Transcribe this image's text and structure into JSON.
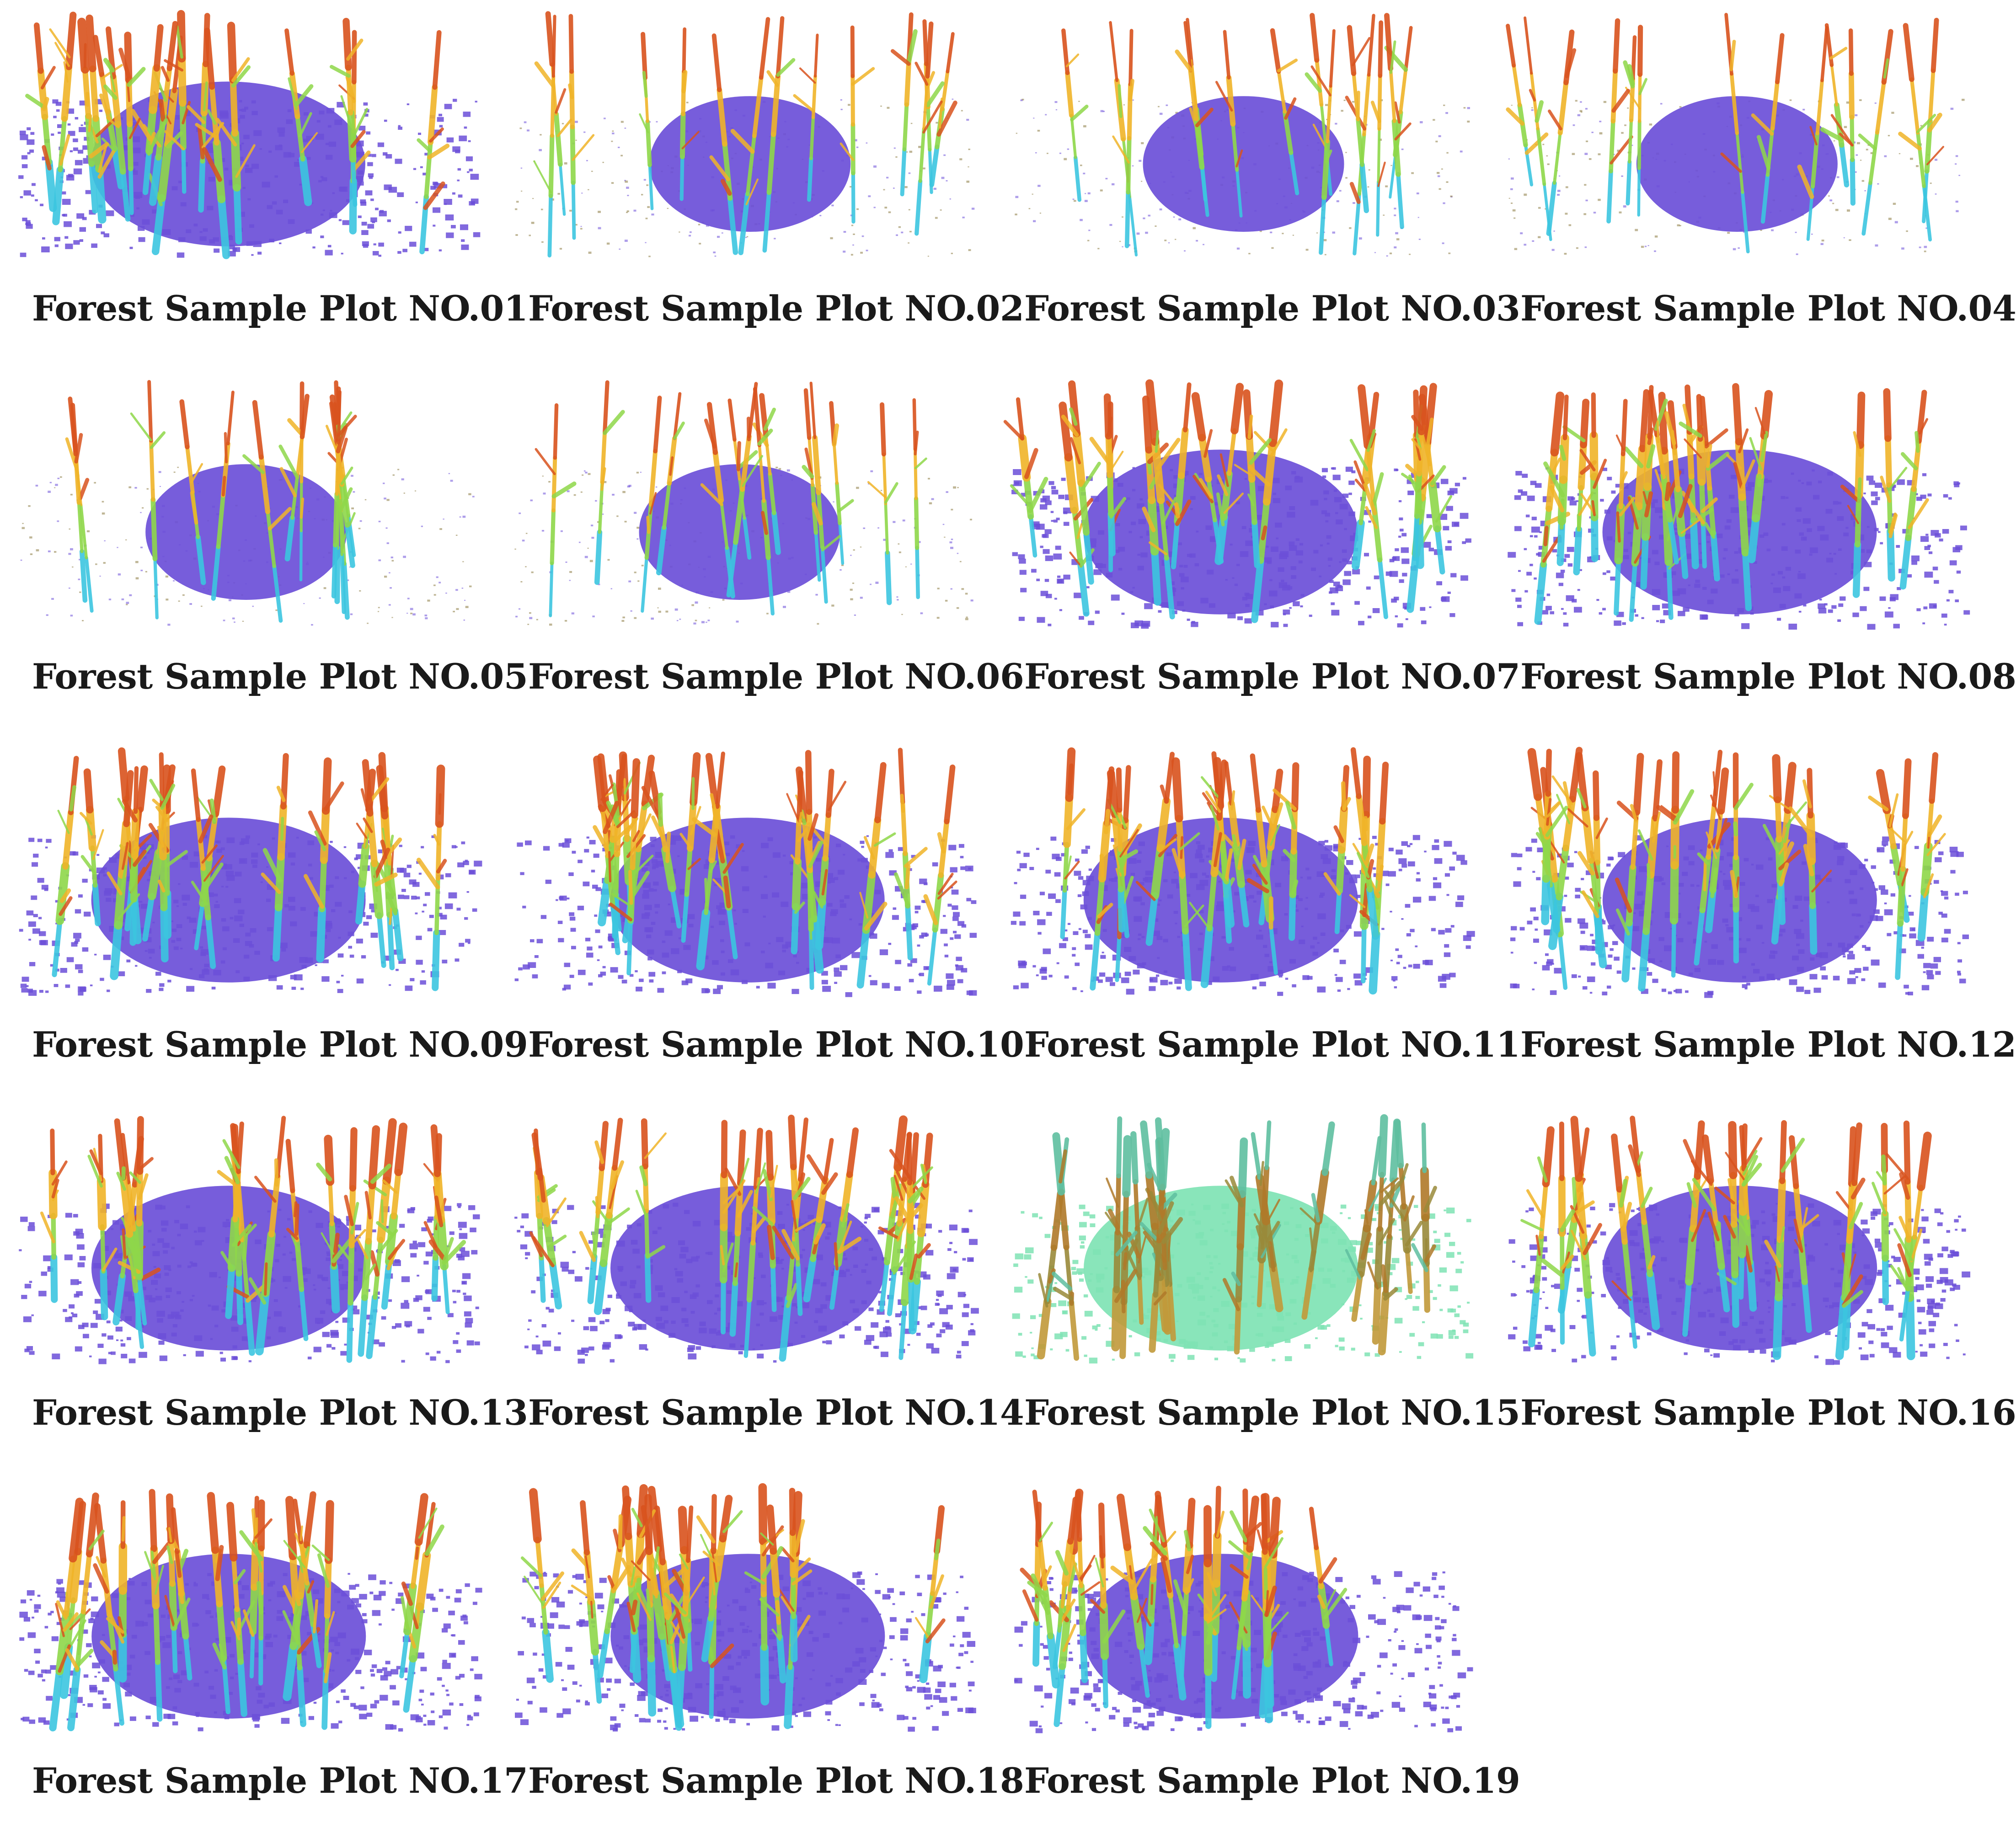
{
  "figure": {
    "plots": [
      {
        "caption": "Forest Sample Plot NO.01",
        "ground_color": "#6b4fd8",
        "style": "dense"
      },
      {
        "caption": "Forest Sample Plot NO.02",
        "ground_color": "#6b4fd8",
        "style": "sparse"
      },
      {
        "caption": "Forest Sample Plot NO.03",
        "ground_color": "#6b4fd8",
        "style": "sparse"
      },
      {
        "caption": "Forest Sample Plot NO.04",
        "ground_color": "#6b4fd8",
        "style": "sparse"
      },
      {
        "caption": "Forest Sample Plot NO.05",
        "ground_color": "#6b4fd8",
        "style": "sparse"
      },
      {
        "caption": "Forest Sample Plot NO.06",
        "ground_color": "#6b4fd8",
        "style": "sparse"
      },
      {
        "caption": "Forest Sample Plot NO.07",
        "ground_color": "#6b4fd8",
        "style": "dense"
      },
      {
        "caption": "Forest Sample Plot NO.08",
        "ground_color": "#6b4fd8",
        "style": "dense"
      },
      {
        "caption": "Forest Sample Plot NO.09",
        "ground_color": "#6b4fd8",
        "style": "dense"
      },
      {
        "caption": "Forest Sample Plot NO.10",
        "ground_color": "#6b4fd8",
        "style": "dense"
      },
      {
        "caption": "Forest Sample Plot NO.11",
        "ground_color": "#6b4fd8",
        "style": "dense"
      },
      {
        "caption": "Forest Sample Plot NO.12",
        "ground_color": "#6b4fd8",
        "style": "dense"
      },
      {
        "caption": "Forest Sample Plot NO.13",
        "ground_color": "#6b4fd8",
        "style": "dense"
      },
      {
        "caption": "Forest Sample Plot NO.14",
        "ground_color": "#6b4fd8",
        "style": "dense"
      },
      {
        "caption": "Forest Sample Plot NO.15",
        "ground_color": "#7fe3b4",
        "style": "green"
      },
      {
        "caption": "Forest Sample Plot NO.16",
        "ground_color": "#6b4fd8",
        "style": "dense"
      },
      {
        "caption": "Forest Sample Plot NO.17",
        "ground_color": "#6b4fd8",
        "style": "dense"
      },
      {
        "caption": "Forest Sample Plot NO.18",
        "ground_color": "#6b4fd8",
        "style": "dense"
      },
      {
        "caption": "Forest Sample Plot NO.19",
        "ground_color": "#6b4fd8",
        "style": "dense"
      }
    ],
    "palette": {
      "trunk_low": "#3cc6e0",
      "trunk_mid": "#8fd84a",
      "canopy_high": "#f0b429",
      "canopy_top": "#d9531e"
    }
  }
}
